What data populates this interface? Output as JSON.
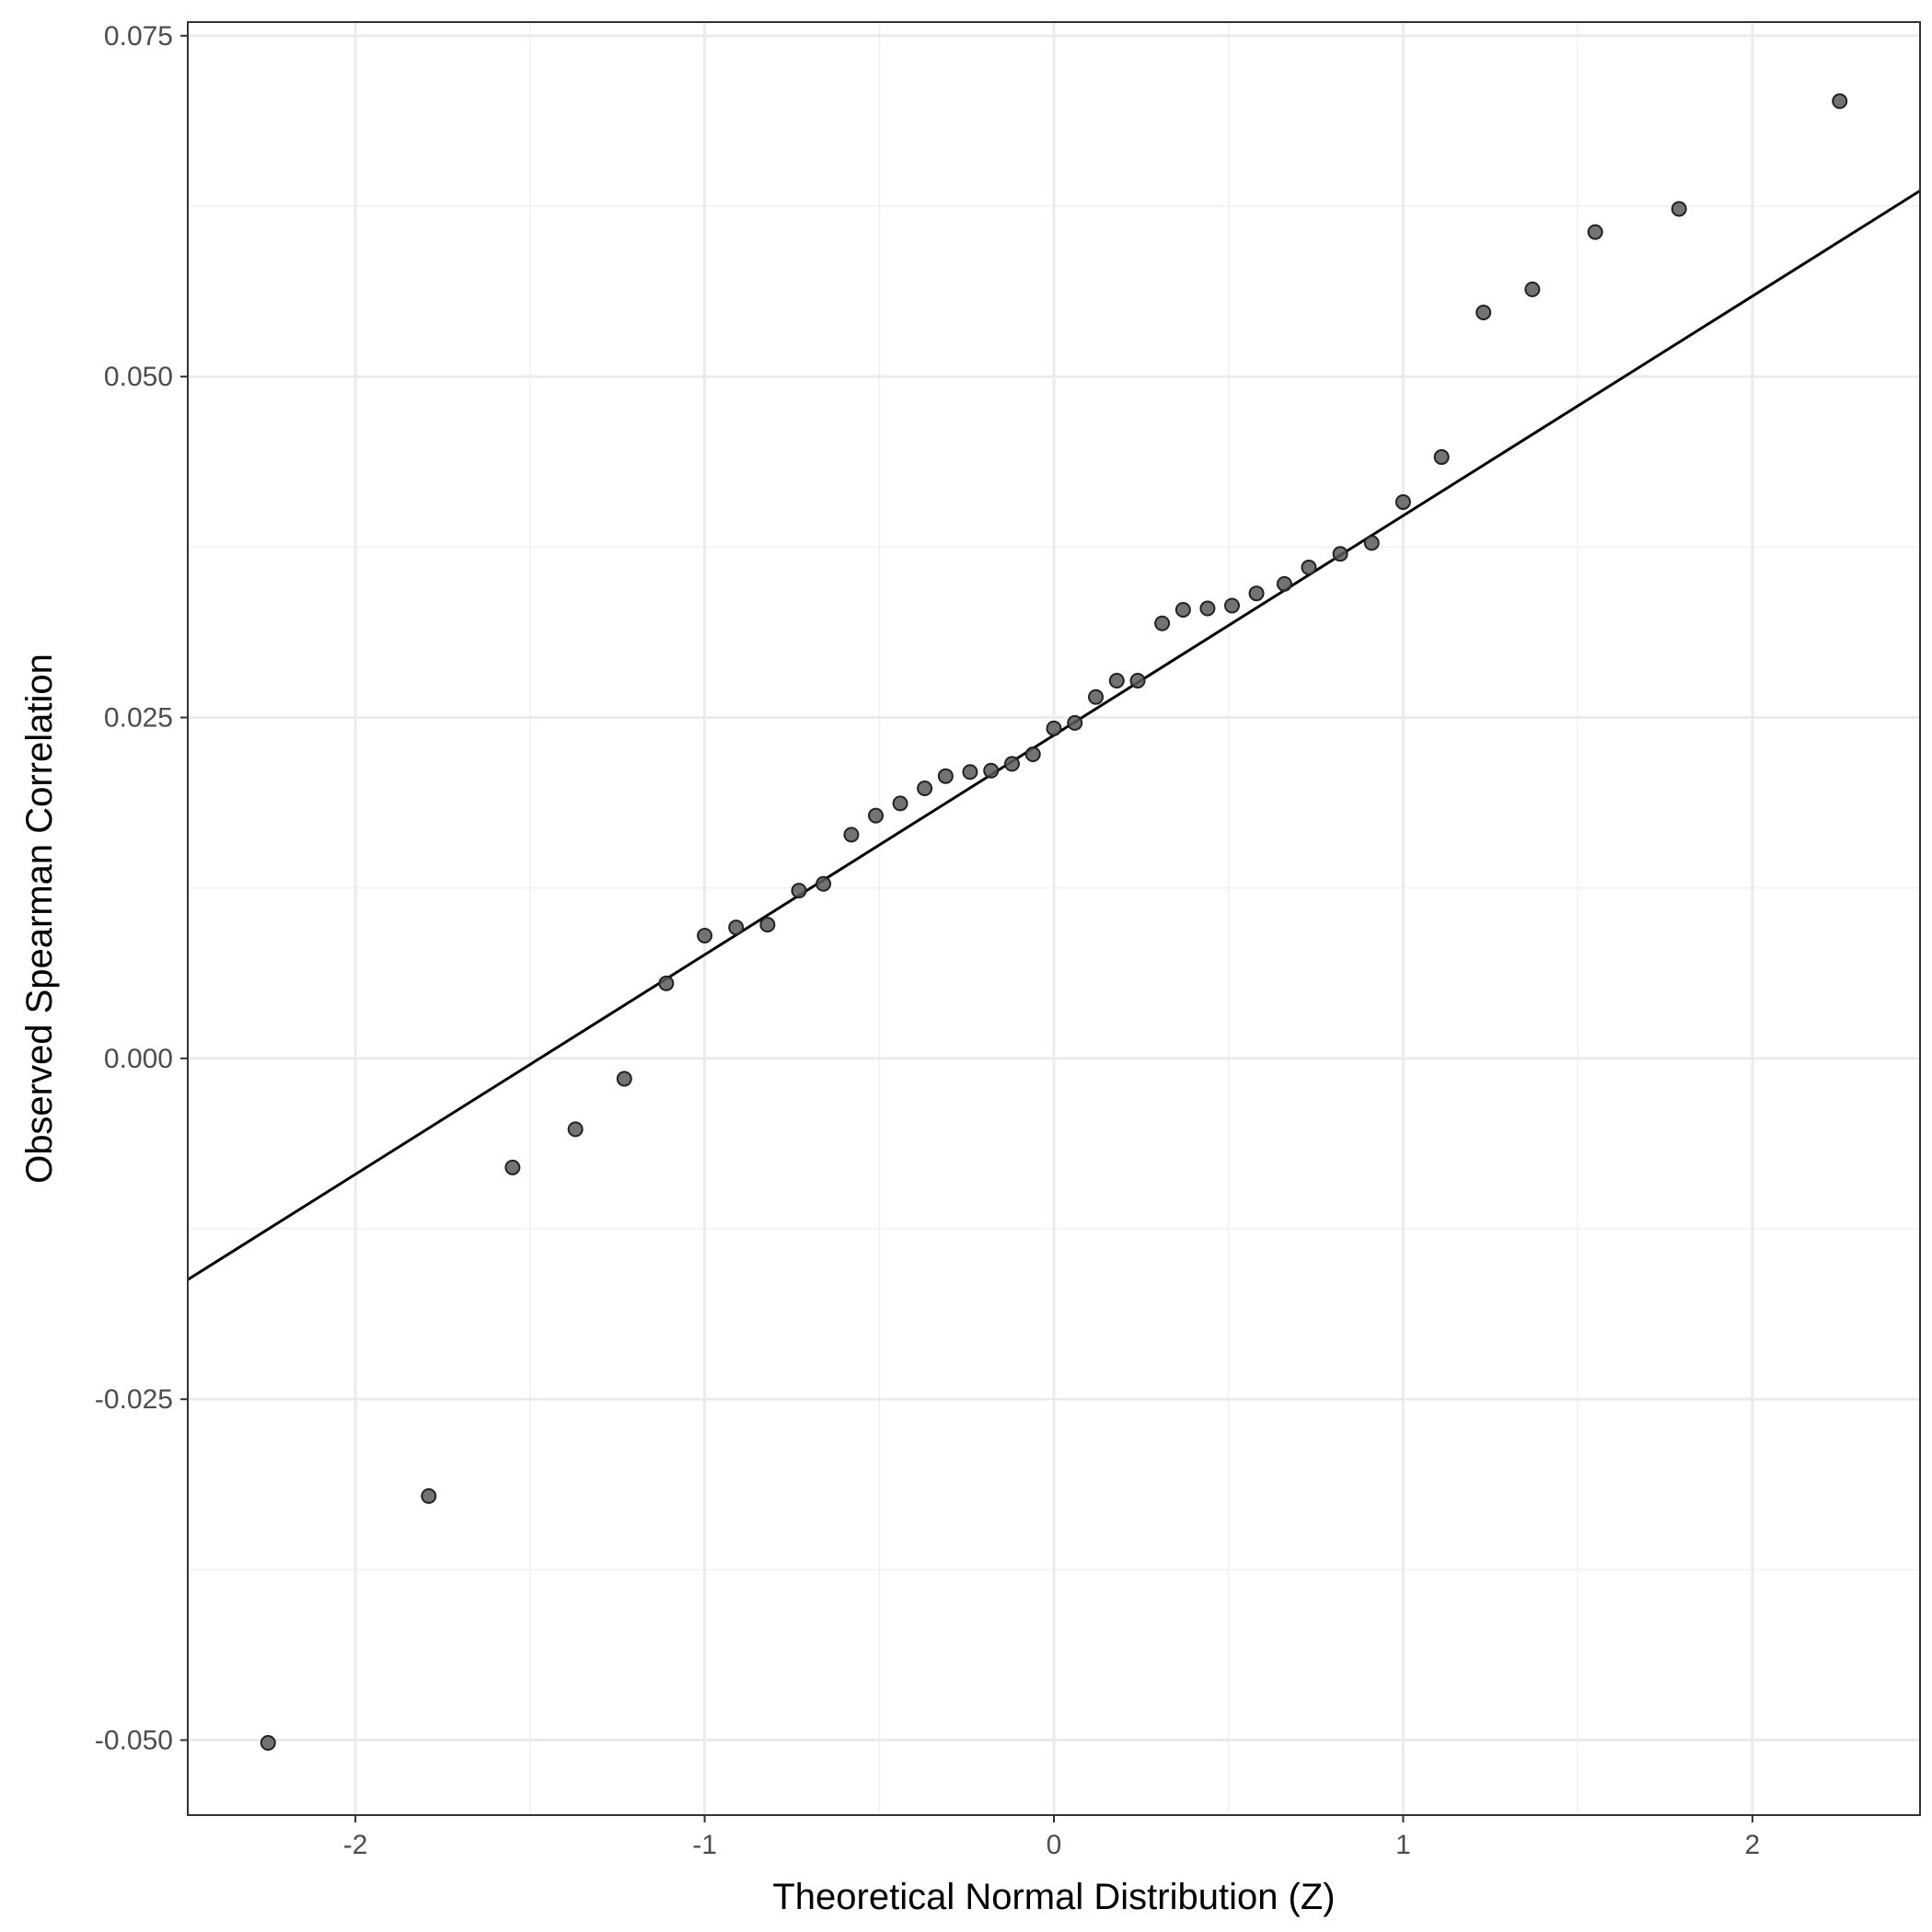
{
  "chart_data": {
    "type": "scatter",
    "title": "",
    "xlabel": "Theoretical Normal Distribution (Z)",
    "ylabel": "Observed Spearman Correlation",
    "xlim": [
      -2.48,
      2.48
    ],
    "ylim": [
      -0.0555,
      0.076
    ],
    "x_ticks": [
      -2,
      -1,
      0,
      1,
      2
    ],
    "x_tick_labels": [
      "-2",
      "-1",
      "0",
      "1",
      "2"
    ],
    "y_ticks": [
      -0.05,
      -0.025,
      0.0,
      0.025,
      0.05,
      0.075
    ],
    "y_tick_labels": [
      "-0.050",
      "-0.025",
      "0.000",
      "0.025",
      "0.050",
      "0.075"
    ],
    "grid": true,
    "legend": "none",
    "point_color": "#5a5a5a",
    "line_color": "#000000",
    "points": [
      {
        "x": -2.25,
        "y": -0.0502
      },
      {
        "x": -1.79,
        "y": -0.0321
      },
      {
        "x": -1.55,
        "y": -0.008
      },
      {
        "x": -1.37,
        "y": -0.0052
      },
      {
        "x": -1.23,
        "y": -0.0015
      },
      {
        "x": -1.11,
        "y": 0.0055
      },
      {
        "x": -1.0,
        "y": 0.009
      },
      {
        "x": -0.91,
        "y": 0.0096
      },
      {
        "x": -0.82,
        "y": 0.0098
      },
      {
        "x": -0.73,
        "y": 0.0123
      },
      {
        "x": -0.66,
        "y": 0.0128
      },
      {
        "x": -0.58,
        "y": 0.0164
      },
      {
        "x": -0.51,
        "y": 0.0178
      },
      {
        "x": -0.44,
        "y": 0.0187
      },
      {
        "x": -0.37,
        "y": 0.0198
      },
      {
        "x": -0.31,
        "y": 0.0207
      },
      {
        "x": -0.24,
        "y": 0.021
      },
      {
        "x": -0.18,
        "y": 0.0211
      },
      {
        "x": -0.12,
        "y": 0.0216
      },
      {
        "x": -0.06,
        "y": 0.0223
      },
      {
        "x": 0.0,
        "y": 0.0242
      },
      {
        "x": 0.06,
        "y": 0.0246
      },
      {
        "x": 0.12,
        "y": 0.0265
      },
      {
        "x": 0.18,
        "y": 0.0277
      },
      {
        "x": 0.24,
        "y": 0.0277
      },
      {
        "x": 0.31,
        "y": 0.0319
      },
      {
        "x": 0.37,
        "y": 0.0329
      },
      {
        "x": 0.44,
        "y": 0.033
      },
      {
        "x": 0.51,
        "y": 0.0332
      },
      {
        "x": 0.58,
        "y": 0.0341
      },
      {
        "x": 0.66,
        "y": 0.0348
      },
      {
        "x": 0.73,
        "y": 0.036
      },
      {
        "x": 0.82,
        "y": 0.037
      },
      {
        "x": 0.91,
        "y": 0.0378
      },
      {
        "x": 1.0,
        "y": 0.0408
      },
      {
        "x": 1.11,
        "y": 0.0441
      },
      {
        "x": 1.23,
        "y": 0.0547
      },
      {
        "x": 1.37,
        "y": 0.0564
      },
      {
        "x": 1.55,
        "y": 0.0606
      },
      {
        "x": 1.79,
        "y": 0.0623
      },
      {
        "x": 2.25,
        "y": 0.0702
      }
    ],
    "reference_line": {
      "intercept": 0.0237,
      "slope": 0.0161
    }
  }
}
